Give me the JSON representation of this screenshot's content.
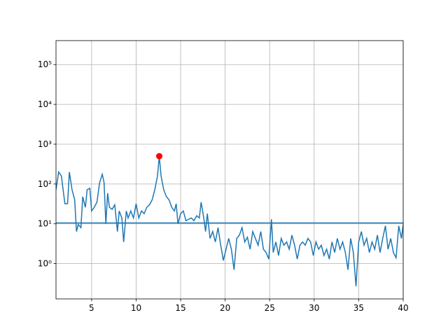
{
  "chart_data": {
    "type": "line",
    "log_y": true,
    "grid": true,
    "xlim": [
      1,
      40
    ],
    "ylim": [
      0.13,
      400000
    ],
    "xticks": [
      5,
      10,
      15,
      20,
      25,
      30,
      35,
      40
    ],
    "yticks": [
      {
        "value": 1,
        "label": "10⁰"
      },
      {
        "value": 10,
        "label": "10¹"
      },
      {
        "value": 100,
        "label": "10²"
      },
      {
        "value": 1000,
        "label": "10³"
      },
      {
        "value": 10000,
        "label": "10⁴"
      },
      {
        "value": 100000,
        "label": "10⁵"
      }
    ],
    "x": [
      1,
      1.3,
      1.6,
      2.0,
      2.3,
      2.5,
      2.8,
      3.1,
      3.3,
      3.5,
      3.8,
      4.0,
      4.3,
      4.5,
      4.8,
      5.0,
      5.3,
      5.6,
      5.9,
      6.2,
      6.4,
      6.6,
      6.8,
      7.0,
      7.3,
      7.6,
      7.9,
      8.1,
      8.4,
      8.6,
      8.9,
      9.1,
      9.4,
      9.7,
      10.0,
      10.3,
      10.6,
      10.9,
      11.2,
      11.5,
      11.8,
      12.1,
      12.4,
      12.6,
      12.8,
      13.1,
      13.4,
      13.7,
      14.0,
      14.3,
      14.5,
      14.7,
      15.0,
      15.3,
      15.6,
      15.9,
      16.2,
      16.5,
      16.8,
      17.1,
      17.3,
      17.6,
      17.8,
      18.0,
      18.3,
      18.6,
      18.9,
      19.2,
      19.5,
      19.8,
      20.1,
      20.4,
      20.7,
      21.0,
      21.3,
      21.6,
      21.9,
      22.2,
      22.5,
      22.8,
      23.1,
      23.4,
      23.7,
      24.0,
      24.3,
      24.6,
      24.9,
      25.2,
      25.4,
      25.7,
      26.0,
      26.3,
      26.6,
      26.9,
      27.2,
      27.5,
      27.8,
      28.1,
      28.4,
      28.7,
      29.0,
      29.3,
      29.6,
      29.9,
      30.2,
      30.5,
      30.8,
      31.1,
      31.4,
      31.7,
      32.0,
      32.3,
      32.6,
      32.9,
      33.2,
      33.5,
      33.8,
      34.1,
      34.4,
      34.7,
      35.0,
      35.3,
      35.6,
      35.9,
      36.2,
      36.5,
      36.8,
      37.1,
      37.4,
      37.7,
      38.0,
      38.3,
      38.6,
      38.9,
      39.2,
      39.5,
      39.8,
      40.0
    ],
    "series": [
      {
        "color": "#1f77b4",
        "values": [
          72,
          200,
          160,
          32,
          32,
          200,
          72,
          40,
          6.4,
          9.6,
          8,
          48,
          26,
          72,
          78,
          21,
          26,
          35,
          108,
          176,
          108,
          10,
          59,
          26,
          23,
          30,
          6.4,
          21,
          14,
          3.5,
          21,
          14,
          21,
          14,
          32,
          14,
          21,
          18,
          26,
          30,
          40,
          72,
          160,
          500,
          160,
          72,
          48,
          40,
          26,
          21,
          32,
          10,
          18,
          21,
          12,
          13,
          14,
          12,
          16,
          14,
          35,
          14,
          6.4,
          18,
          4.3,
          6.4,
          3.5,
          8,
          2.9,
          1.2,
          2.3,
          4.3,
          2.3,
          0.7,
          4.3,
          5.2,
          8,
          3.5,
          4.6,
          2.3,
          6.4,
          4.3,
          2.9,
          6.4,
          2.3,
          1.9,
          1.3,
          13,
          1.9,
          3.5,
          1.6,
          4.3,
          2.9,
          3.5,
          2.3,
          5.2,
          2.9,
          1.3,
          2.9,
          3.5,
          2.9,
          4.3,
          3.5,
          1.6,
          3.5,
          2.3,
          2.9,
          1.6,
          2.3,
          1.3,
          3.5,
          1.9,
          4.3,
          2.3,
          3.5,
          1.9,
          0.7,
          4.3,
          1.9,
          0.27,
          3.5,
          6.4,
          2.9,
          4.3,
          1.9,
          3.5,
          2.3,
          5.2,
          1.9,
          4.3,
          8.9,
          2.3,
          4.3,
          1.9,
          1.4,
          8.9,
          4.3,
          9.6
        ]
      }
    ],
    "hlines": [
      {
        "value": 10.5,
        "color": "#1f77b4"
      }
    ],
    "points": [
      {
        "x": 12.6,
        "y": 500,
        "color": "#ff0000"
      }
    ]
  }
}
